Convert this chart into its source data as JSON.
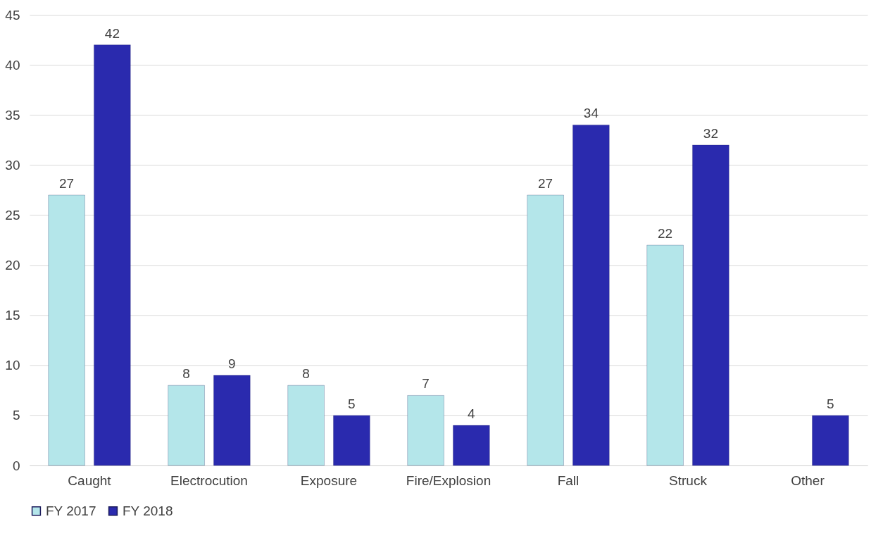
{
  "chart_data": {
    "type": "bar",
    "categories": [
      "Caught",
      "Electrocution",
      "Exposure",
      "Fire/Explosion",
      "Fall",
      "Struck",
      "Other"
    ],
    "series": [
      {
        "name": "FY 2017",
        "color": "#b4e6ea",
        "values": [
          27,
          8,
          8,
          7,
          27,
          22,
          null
        ]
      },
      {
        "name": "FY 2018",
        "color": "#2a2aae",
        "values": [
          42,
          9,
          5,
          4,
          34,
          32,
          5
        ]
      }
    ],
    "ylim": [
      0,
      45
    ],
    "yticks": [
      0,
      5,
      10,
      15,
      20,
      25,
      30,
      35,
      40,
      45
    ],
    "grid": "y",
    "legend": "bottom",
    "data_labels": true
  }
}
